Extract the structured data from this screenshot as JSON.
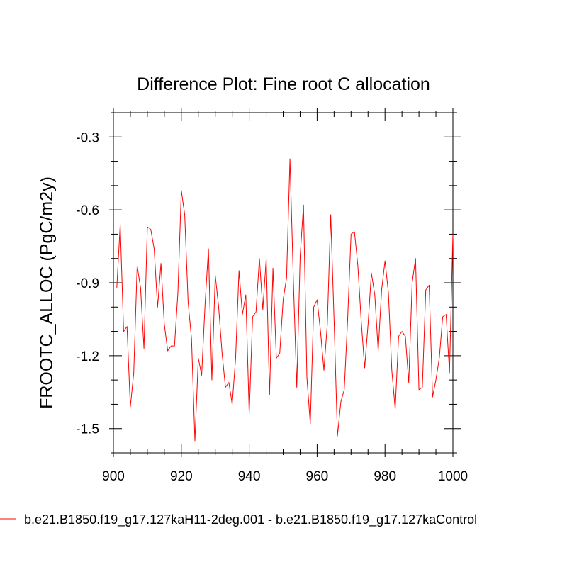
{
  "chart_data": {
    "type": "line",
    "title": "Difference Plot: Fine root C allocation",
    "xlabel": "",
    "ylabel": "FROOTC_ALLOC  (PgC/m2y)",
    "xlim": [
      900,
      1000
    ],
    "ylim": [
      -1.6,
      -0.2
    ],
    "x_ticks": [
      900,
      920,
      940,
      960,
      980,
      1000
    ],
    "x_tick_labels": [
      "900",
      "920",
      "940",
      "960",
      "980",
      "1000"
    ],
    "y_ticks": [
      -0.3,
      -0.6,
      -0.9,
      -1.2,
      -1.5
    ],
    "y_tick_labels": [
      "-0.3",
      "-0.6",
      "-0.9",
      "-1.2",
      "-1.5"
    ],
    "grid": false,
    "legend_position": "bottom",
    "series": [
      {
        "name": "b.e21.B1850.f19_g17.127kaH11-2deg.001 - b.e21.B1850.f19_g17.127kaControl",
        "color": "#ff0000",
        "x": [
          901,
          902,
          903,
          904,
          905,
          906,
          907,
          908,
          909,
          910,
          911,
          912,
          913,
          914,
          915,
          916,
          917,
          918,
          919,
          920,
          921,
          922,
          923,
          924,
          925,
          926,
          927,
          928,
          929,
          930,
          931,
          932,
          933,
          934,
          935,
          936,
          937,
          938,
          939,
          940,
          941,
          942,
          943,
          944,
          945,
          946,
          947,
          948,
          949,
          950,
          951,
          952,
          953,
          954,
          955,
          956,
          957,
          958,
          959,
          960,
          961,
          962,
          963,
          964,
          965,
          966,
          967,
          968,
          969,
          970,
          971,
          972,
          973,
          974,
          975,
          976,
          977,
          978,
          979,
          980,
          981,
          982,
          983,
          984,
          985,
          986,
          987,
          988,
          989,
          990,
          991,
          992,
          993,
          994,
          995,
          996,
          997,
          998,
          999,
          1000
        ],
        "values": [
          -0.92,
          -0.66,
          -1.1,
          -1.08,
          -1.41,
          -1.27,
          -0.83,
          -0.92,
          -1.17,
          -0.67,
          -0.68,
          -0.76,
          -1.0,
          -0.82,
          -1.07,
          -1.18,
          -1.16,
          -1.16,
          -0.94,
          -0.52,
          -0.62,
          -0.98,
          -1.13,
          -1.55,
          -1.21,
          -1.28,
          -0.99,
          -0.76,
          -1.3,
          -0.87,
          -1.0,
          -1.19,
          -1.33,
          -1.31,
          -1.4,
          -1.21,
          -0.85,
          -1.03,
          -0.95,
          -1.44,
          -1.04,
          -1.02,
          -0.8,
          -1.01,
          -0.8,
          -1.36,
          -0.84,
          -1.21,
          -1.19,
          -0.97,
          -0.88,
          -0.39,
          -0.89,
          -1.33,
          -0.79,
          -0.58,
          -1.29,
          -1.48,
          -1.0,
          -0.97,
          -1.1,
          -1.26,
          -1.07,
          -0.62,
          -1.06,
          -1.53,
          -1.39,
          -1.34,
          -1.05,
          -0.7,
          -0.69,
          -0.83,
          -1.06,
          -1.25,
          -1.07,
          -0.86,
          -0.95,
          -1.18,
          -0.93,
          -0.81,
          -0.94,
          -1.26,
          -1.42,
          -1.12,
          -1.1,
          -1.12,
          -1.31,
          -0.9,
          -0.8,
          -1.34,
          -1.33,
          -0.93,
          -0.91,
          -1.37,
          -1.3,
          -1.21,
          -1.04,
          -1.03,
          -1.27,
          -0.7
        ]
      }
    ]
  }
}
